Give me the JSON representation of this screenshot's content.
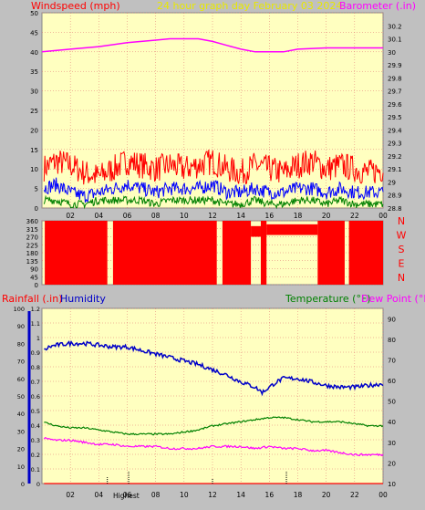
{
  "colors": {
    "background": "#c0c0c0",
    "plot_bg": "#ffffc0",
    "grid": "#e07070",
    "wind": "#ff0000",
    "gust": "#ff0000",
    "wind_avg": "#0000ff",
    "wind_low": "#008000",
    "barometer": "#ff00ff",
    "title": "#e8e800",
    "humidity": "#0000c8",
    "temperature": "#008000",
    "dewpoint": "#ff00ff",
    "rain_label": "#ff0000",
    "direction": "#ff0000"
  },
  "chart_data": [
    {
      "id": "wind-barometer",
      "type": "line",
      "title": "24 hour graph day   February 03 2024",
      "left_axis_label": "Windspeed (mph)",
      "right_axis_label": "Barometer (.in)",
      "x_ticks": [
        "02",
        "04",
        "06",
        "08",
        "10",
        "12",
        "14",
        "16",
        "18",
        "20",
        "22",
        "00"
      ],
      "ylim_left": [
        0,
        50
      ],
      "y_ticks_left": [
        "0",
        "5",
        "10",
        "15",
        "20",
        "25",
        "30",
        "35",
        "40",
        "45",
        "50"
      ],
      "ylim_right": [
        28.8,
        30.3
      ],
      "y_ticks_right": [
        "28.8",
        "28.9",
        "29",
        "29.1",
        "29.2",
        "29.3",
        "29.4",
        "29.5",
        "29.6",
        "29.7",
        "29.8",
        "29.9",
        "30",
        "30.1",
        "30.2"
      ],
      "series": [
        {
          "name": "Barometer (.in)",
          "axis": "right",
          "x": [
            0,
            2,
            4,
            6,
            8,
            9,
            10,
            11,
            12,
            13,
            14,
            15,
            16,
            17,
            18,
            20,
            22,
            24
          ],
          "values": [
            30.0,
            30.02,
            30.04,
            30.07,
            30.09,
            30.1,
            30.1,
            30.1,
            30.08,
            30.05,
            30.02,
            30.0,
            30.0,
            30.0,
            30.02,
            30.03,
            30.03,
            30.03
          ]
        },
        {
          "axis": "left",
          "role": "gust",
          "x": [
            0,
            1,
            2,
            3,
            4,
            5,
            6,
            7,
            8,
            9,
            10,
            11,
            12,
            13,
            14,
            15,
            16,
            17,
            18,
            19,
            20,
            21,
            22,
            23,
            24
          ],
          "values": [
            10,
            12,
            11,
            9,
            8,
            10,
            12,
            11,
            10,
            11,
            10,
            11,
            12,
            10,
            9,
            11,
            10,
            9,
            11,
            12,
            10,
            11,
            10,
            9,
            10
          ]
        },
        {
          "axis": "left",
          "role": "average",
          "x": [
            0,
            1,
            2,
            3,
            4,
            5,
            6,
            7,
            8,
            9,
            10,
            11,
            12,
            13,
            14,
            15,
            16,
            17,
            18,
            19,
            20,
            21,
            22,
            23,
            24
          ],
          "values": [
            5,
            6,
            4,
            3,
            4,
            5,
            6,
            5,
            4,
            5,
            5,
            5,
            6,
            4,
            4,
            5,
            4,
            4,
            5,
            5,
            4,
            5,
            4,
            4,
            4
          ]
        },
        {
          "axis": "left",
          "role": "low",
          "x": [
            0,
            1,
            2,
            3,
            4,
            5,
            6,
            7,
            8,
            9,
            10,
            11,
            12,
            13,
            14,
            15,
            16,
            17,
            18,
            19,
            20,
            21,
            22,
            23,
            24
          ],
          "values": [
            2,
            2,
            1,
            1,
            2,
            2,
            2,
            2,
            1,
            2,
            2,
            2,
            2,
            1,
            1,
            2,
            1,
            1,
            2,
            2,
            1,
            2,
            1,
            1,
            1
          ]
        }
      ]
    },
    {
      "id": "wind-direction",
      "type": "bar",
      "x_ticks": [
        "02",
        "04",
        "06",
        "08",
        "10",
        "12",
        "14",
        "16",
        "18",
        "20",
        "22",
        "00"
      ],
      "ylim": [
        0,
        360
      ],
      "y_ticks": [
        "0",
        "45",
        "90",
        "135",
        "180",
        "225",
        "270",
        "315",
        "360"
      ],
      "compass_labels": [
        "N",
        "W",
        "S",
        "E",
        "N"
      ],
      "segments": [
        {
          "x0": 0.2,
          "x1": 4.6,
          "y0": 0,
          "y1": 360
        },
        {
          "x0": 5.0,
          "x1": 12.3,
          "y0": 0,
          "y1": 360
        },
        {
          "x0": 12.7,
          "x1": 14.7,
          "y0": 0,
          "y1": 360
        },
        {
          "x0": 14.7,
          "x1": 15.4,
          "y0": 270,
          "y1": 330
        },
        {
          "x0": 15.4,
          "x1": 15.8,
          "y0": 0,
          "y1": 360
        },
        {
          "x0": 15.8,
          "x1": 19.4,
          "y0": 280,
          "y1": 340
        },
        {
          "x0": 19.4,
          "x1": 21.3,
          "y0": 0,
          "y1": 360
        },
        {
          "x0": 21.6,
          "x1": 24.0,
          "y0": 0,
          "y1": 360
        }
      ]
    },
    {
      "id": "temp-humidity",
      "type": "line",
      "left_axis_label_1": "Rainfall (.in)",
      "left_axis_label_2": "Humidity",
      "right_axis_label_1": "Temperature (°F)",
      "right_axis_label_2": "Dew Point (°F)",
      "x_ticks": [
        "02",
        "04",
        "06",
        "08",
        "10",
        "12",
        "14",
        "16",
        "18",
        "20",
        "22",
        "00"
      ],
      "annotation": "Highest",
      "ylim_rain": [
        0,
        1.2
      ],
      "y_ticks_rain": [
        "0",
        "0.1",
        "0.2",
        "0.3",
        "0.4",
        "0.5",
        "0.6",
        "0.7",
        "0.8",
        "0.9",
        "1",
        "1.1",
        "1.2"
      ],
      "ylim_humidity": [
        0,
        100
      ],
      "y_ticks_humidity": [
        "0",
        "10",
        "20",
        "30",
        "40",
        "50",
        "60",
        "70",
        "80",
        "90",
        "100"
      ],
      "ylim_temp": [
        10,
        95
      ],
      "y_ticks_temp": [
        "10",
        "20",
        "30",
        "40",
        "50",
        "60",
        "70",
        "80",
        "90"
      ],
      "series": [
        {
          "name": "Humidity",
          "axis": "humidity",
          "x": [
            0,
            0.5,
            1,
            2,
            3,
            4,
            5,
            6,
            7,
            8,
            9,
            10,
            11,
            12,
            13,
            14,
            15,
            15.5,
            16,
            16.5,
            17,
            18,
            19,
            20,
            21,
            22,
            23,
            24
          ],
          "values": [
            75,
            78,
            79,
            80,
            80,
            79,
            78,
            78,
            76,
            74,
            72,
            70,
            68,
            65,
            62,
            58,
            55,
            52,
            55,
            58,
            60,
            60,
            58,
            56,
            55,
            55,
            56,
            57
          ]
        },
        {
          "name": "Temperature (°F)",
          "axis": "temp",
          "x": [
            0,
            1,
            2,
            3,
            4,
            5,
            6,
            7,
            8,
            9,
            10,
            11,
            12,
            13,
            14,
            15,
            16,
            17,
            18,
            19,
            20,
            21,
            22,
            23,
            24
          ],
          "values": [
            40,
            38,
            37,
            37,
            36,
            35,
            34,
            34,
            34,
            34,
            35,
            36,
            38,
            39,
            40,
            41,
            42,
            42,
            41,
            40,
            40,
            40,
            39,
            38,
            38
          ]
        },
        {
          "name": "Dew Point (°F)",
          "axis": "temp",
          "x": [
            0,
            1,
            2,
            3,
            4,
            5,
            6,
            7,
            8,
            9,
            10,
            11,
            12,
            13,
            14,
            15,
            16,
            17,
            18,
            19,
            20,
            21,
            22,
            23,
            24
          ],
          "values": [
            32,
            31,
            31,
            30,
            29,
            29,
            28,
            28,
            28,
            27,
            27,
            27,
            28,
            28,
            28,
            27,
            28,
            27,
            27,
            26,
            26,
            25,
            24,
            24,
            24
          ]
        },
        {
          "name": "Rainfall (.in)",
          "axis": "rain",
          "x": [
            0,
            24
          ],
          "values": [
            0,
            0
          ]
        }
      ]
    }
  ]
}
